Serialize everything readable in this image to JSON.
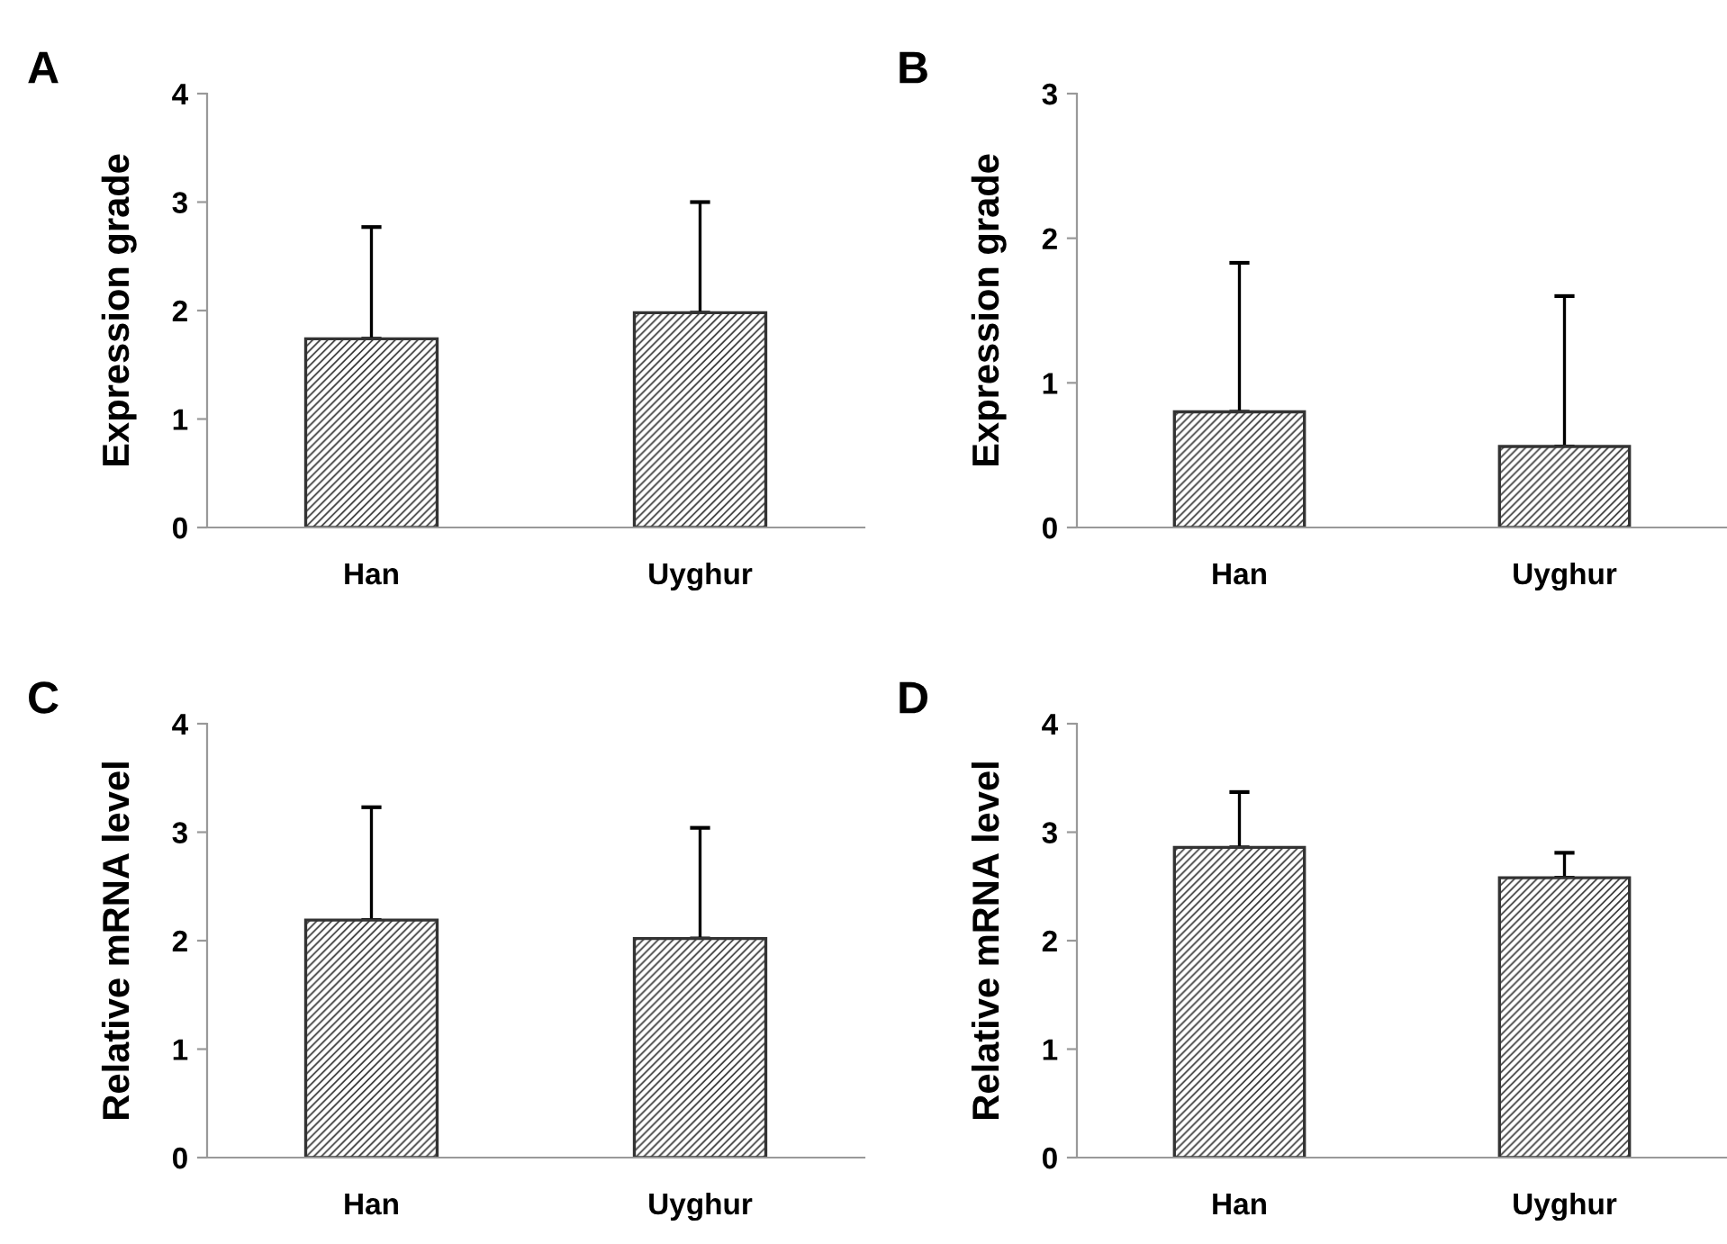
{
  "chart_data": [
    {
      "type": "bar",
      "title": "A",
      "ylabel": "Expression grade",
      "categories": [
        "Han",
        "Uyghur"
      ],
      "values": [
        1.74,
        1.98
      ],
      "errors": [
        [
          1.74,
          2.77
        ],
        [
          1.98,
          3.0
        ]
      ],
      "color": "#333333",
      "ylim": [
        0,
        4
      ],
      "yticks": [
        0,
        1,
        2,
        3,
        4
      ]
    },
    {
      "type": "bar",
      "title": "B",
      "ylabel": "Expression grade",
      "categories": [
        "Han",
        "Uyghur"
      ],
      "values": [
        0.8,
        0.56
      ],
      "errors": [
        [
          0.8,
          1.83
        ],
        [
          0.56,
          1.6
        ]
      ],
      "color": "#333333",
      "ylim": [
        0,
        3
      ],
      "yticks": [
        0,
        1,
        2,
        3
      ]
    },
    {
      "type": "bar",
      "title": "C",
      "ylabel": "Relative mRNA level",
      "categories": [
        "Han",
        "Uyghur"
      ],
      "values": [
        2.19,
        2.02
      ],
      "errors": [
        [
          2.19,
          3.23
        ],
        [
          2.02,
          3.04
        ]
      ],
      "color": "#333333",
      "ylim": [
        0,
        4
      ],
      "yticks": [
        0,
        1,
        2,
        3,
        4
      ]
    },
    {
      "type": "bar",
      "title": "D",
      "ylabel": "Relative mRNA level",
      "categories": [
        "Han",
        "Uyghur"
      ],
      "values": [
        2.86,
        2.58
      ],
      "errors": [
        [
          2.86,
          3.37
        ],
        [
          2.58,
          2.81
        ]
      ],
      "color": "#333333",
      "ylim": [
        0,
        4
      ],
      "yticks": [
        0,
        1,
        2,
        3,
        4
      ]
    }
  ]
}
